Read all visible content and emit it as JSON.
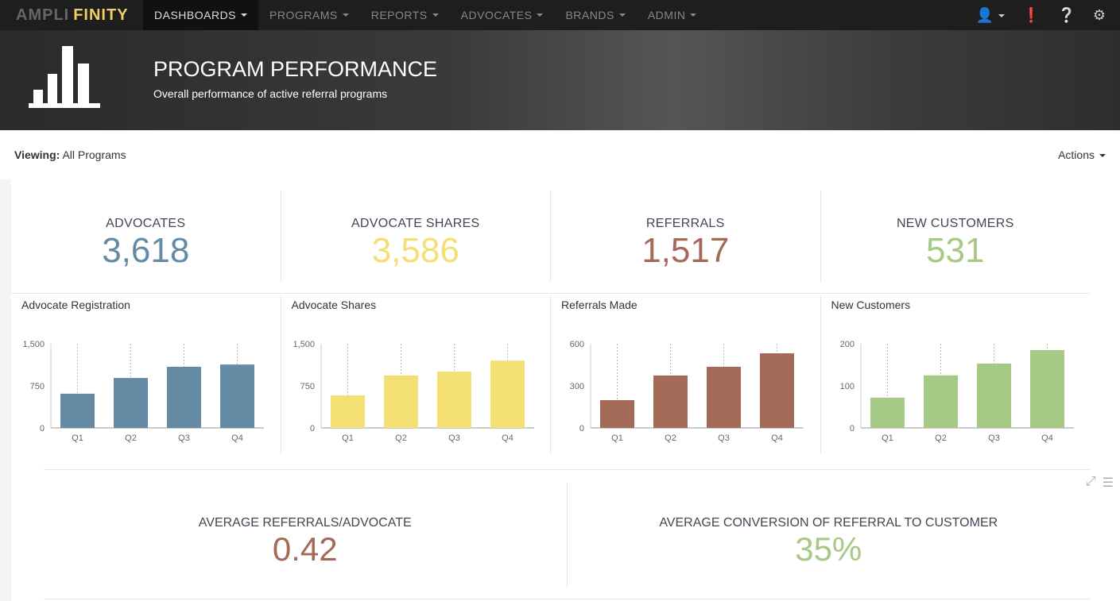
{
  "nav": {
    "logo_a": "AMPLI",
    "logo_b": "FINITY",
    "items": [
      "DASHBOARDS",
      "PROGRAMS",
      "REPORTS",
      "ADVOCATES",
      "BRANDS",
      "ADMIN"
    ]
  },
  "banner": {
    "title": "PROGRAM PERFORMANCE",
    "subtitle": "Overall performance of active referral programs"
  },
  "view": {
    "label": "Viewing:",
    "value": "All Programs",
    "actions": "Actions"
  },
  "kpis": [
    {
      "label": "ADVOCATES",
      "value": "3,618",
      "color": "#648ba3"
    },
    {
      "label": "ADVOCATE SHARES",
      "value": "3,586",
      "color": "#f4df74"
    },
    {
      "label": "REFERRALS",
      "value": "1,517",
      "color": "#a36a58"
    },
    {
      "label": "NEW CUSTOMERS",
      "value": "531",
      "color": "#a6c985"
    }
  ],
  "chart_data": [
    {
      "type": "bar",
      "title": "Advocate Registration",
      "categories": [
        "Q1",
        "Q2",
        "Q3",
        "Q4"
      ],
      "values": [
        610,
        890,
        1090,
        1130
      ],
      "ylim": [
        0,
        1500
      ],
      "yticks": [
        "0",
        "750",
        "1,500"
      ],
      "color": "#648ba3"
    },
    {
      "type": "bar",
      "title": "Advocate Shares",
      "categories": [
        "Q1",
        "Q2",
        "Q3",
        "Q4"
      ],
      "values": [
        580,
        935,
        1005,
        1200
      ],
      "ylim": [
        0,
        1500
      ],
      "yticks": [
        "0",
        "750",
        "1,500"
      ],
      "color": "#f4df74"
    },
    {
      "type": "bar",
      "title": "Referrals Made",
      "categories": [
        "Q1",
        "Q2",
        "Q3",
        "Q4"
      ],
      "values": [
        198,
        374,
        436,
        532
      ],
      "ylim": [
        0,
        600
      ],
      "yticks": [
        "0",
        "300",
        "600"
      ],
      "color": "#a36a58"
    },
    {
      "type": "bar",
      "title": "New Customers",
      "categories": [
        "Q1",
        "Q2",
        "Q3",
        "Q4"
      ],
      "values": [
        72,
        125,
        153,
        185
      ],
      "ylim": [
        0,
        200
      ],
      "yticks": [
        "0",
        "100",
        "200"
      ],
      "color": "#a6c985"
    }
  ],
  "bottom": [
    {
      "label": "AVERAGE REFERRALS/ADVOCATE",
      "value": "0.42",
      "color": "#a36a58"
    },
    {
      "label": "AVERAGE CONVERSION OF REFERRAL TO CUSTOMER",
      "value": "35%",
      "color": "#a6c985"
    }
  ]
}
